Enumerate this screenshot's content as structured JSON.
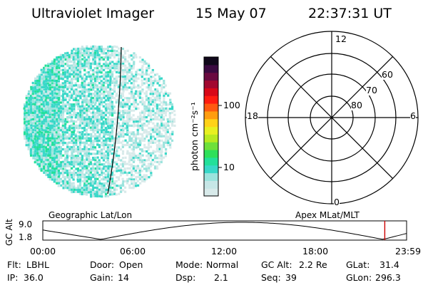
{
  "header": {
    "instrument": "Ultraviolet Imager",
    "date": "15 May 07",
    "time": "22:37:31 UT"
  },
  "colorbar": {
    "unit_label": "photon cm⁻²s⁻¹",
    "ticks": [
      "100",
      "10"
    ],
    "colors": [
      "#d8eaea",
      "#c6e6e6",
      "#9be3dd",
      "#38d8c8",
      "#22e09a",
      "#2ee05a",
      "#6ee03a",
      "#b8ea20",
      "#e8f020",
      "#ffd218",
      "#ff9d10",
      "#ff5a10",
      "#ff1c10",
      "#d80818",
      "#a20830",
      "#6a0a40",
      "#3a0a40",
      "#10081a"
    ]
  },
  "polar_plot": {
    "mlt_labels": {
      "top": "12",
      "left": "18",
      "right": "6",
      "bottom": "0"
    },
    "mlat_labels": [
      "60",
      "70",
      "80"
    ]
  },
  "altitude_plot": {
    "left_title": "Geographic Lat/Lon",
    "right_title": "Apex MLat/MLT",
    "axis_label": "GC Alt",
    "y_ticks": [
      "9.0",
      "1.8"
    ],
    "x_ticks": [
      "00:00",
      "06:00",
      "12:00",
      "18:00",
      "23:59"
    ],
    "current_time_fraction": 0.94
  },
  "status": {
    "row1": [
      {
        "key": "Flt:",
        "value": "LBHL"
      },
      {
        "key": "Door:",
        "value": "Open"
      },
      {
        "key": "Mode:",
        "value": "Normal"
      },
      {
        "key": "GC Alt:",
        "value": "2.2 Re"
      },
      {
        "key": "GLat:",
        "value": "31.4"
      }
    ],
    "row2": [
      {
        "key": "IP:",
        "value": "36.0"
      },
      {
        "key": "Gain:",
        "value": "14"
      },
      {
        "key": "Dsp:",
        "value": "2.1"
      },
      {
        "key": "Seq:",
        "value": "39"
      },
      {
        "key": "GLon:",
        "value": "296.3"
      }
    ]
  },
  "accent": {
    "marker": "#cc0000",
    "aurora_high": "#22e09a",
    "aurora_mid": "#38d8c8",
    "aurora_low": "#c6e6e6"
  }
}
